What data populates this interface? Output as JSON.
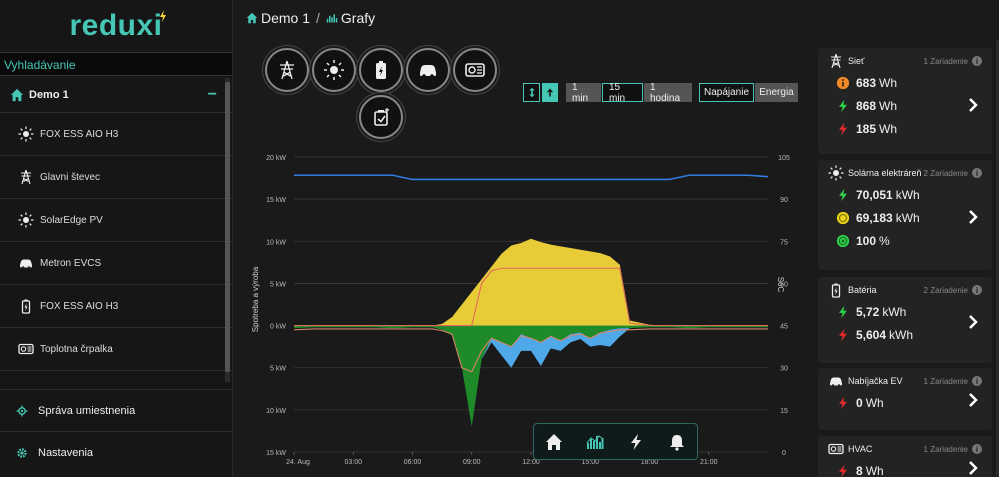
{
  "app": {
    "logo": "reduxi"
  },
  "sidebar": {
    "search_label": "Vyhladávanie",
    "location": "Demo 1",
    "devices": [
      {
        "label": "FOX ESS AIO H3",
        "icon": "sun-icon"
      },
      {
        "label": "Glavni števec",
        "icon": "power-tower-icon"
      },
      {
        "label": "SolarEdge PV",
        "icon": "sun-icon"
      },
      {
        "label": "Metron EVCS",
        "icon": "car-icon"
      },
      {
        "label": "FOX ESS AIO H3",
        "icon": "battery-icon"
      },
      {
        "label": "Toplotna črpalka",
        "icon": "hvac-icon"
      }
    ],
    "nav": [
      {
        "label": "Správa umiestnenia",
        "icon": "location-icon"
      },
      {
        "label": "Nastavenia",
        "icon": "gear-icon"
      }
    ]
  },
  "breadcrumb": {
    "home": "Demo 1",
    "separator": "/",
    "page": "Grafy"
  },
  "controls": {
    "interval_1": "1 min",
    "interval_2": "15 min",
    "interval_3": "1 hodina",
    "mode_1": "Napájanie",
    "mode_2": "Energia"
  },
  "chart_data": {
    "type": "area",
    "ylabel": "Spotreba a výroba",
    "y2label": "SoC",
    "y_ticks": [
      "20 kW",
      "15 kW",
      "10 kW",
      "5 kW",
      "0 kW",
      "5 kW",
      "10 kW",
      "15 kW"
    ],
    "y2_ticks": [
      "105",
      "90",
      "75",
      "60",
      "45",
      "30",
      "15",
      "0"
    ],
    "x_ticks": [
      "24. Aug",
      "03:00",
      "06:00",
      "09:00",
      "12:00",
      "15:00",
      "18:00",
      "21:00"
    ],
    "x_hours": [
      0,
      1,
      2,
      3,
      4,
      5,
      6,
      7,
      7.5,
      8,
      8.5,
      9,
      9.5,
      10,
      10.5,
      11,
      11.5,
      12,
      12.5,
      13,
      13.5,
      14,
      14.5,
      15,
      15.5,
      16,
      16.5,
      17,
      18,
      19,
      20,
      21,
      22,
      23,
      24
    ],
    "solar_kw": [
      0,
      0,
      0,
      0,
      0,
      0,
      0,
      0,
      0.2,
      1,
      2.5,
      4,
      5.5,
      7,
      8.5,
      9.5,
      9.8,
      10.3,
      9.9,
      9.6,
      9.4,
      9.2,
      9,
      8.8,
      8.6,
      8.2,
      7.2,
      0.6,
      0.1,
      0,
      0,
      0,
      0,
      0,
      0
    ],
    "soc_line": [
      98.5,
      98.5,
      98.5,
      98.5,
      98.5,
      98.5,
      97,
      97,
      97,
      97,
      97,
      97,
      97,
      97,
      97,
      97,
      97,
      97,
      97,
      97,
      97,
      97,
      97,
      97,
      97,
      97,
      97,
      97,
      97,
      97,
      98.5,
      98.5,
      98.5,
      98.5,
      98
    ],
    "grid_import_kw": [
      -0.3,
      -0.2,
      -0.2,
      -0.2,
      -0.2,
      -0.3,
      -0.2,
      -0.2,
      -0.5,
      -1.2,
      -5,
      -12,
      -4,
      -1.5,
      -2,
      -2.5,
      -1,
      -1.5,
      -2,
      -1.2,
      -1.8,
      -1,
      -0.8,
      -1.5,
      -0.8,
      -0.5,
      -0.3,
      -0.3,
      -0.2,
      -0.2,
      -0.3,
      -0.2,
      -0.2,
      -0.2,
      -0.2
    ],
    "battery_kw": [
      0,
      0,
      0,
      0,
      0,
      0,
      0,
      0,
      0,
      0,
      0,
      0,
      0,
      -0.5,
      -1.5,
      -2.5,
      -2,
      -1.5,
      -2.8,
      -1.5,
      -1.2,
      -1,
      -0.8,
      -1,
      -1.5,
      -2,
      -1,
      0,
      0,
      0,
      0,
      0,
      0,
      0,
      0
    ],
    "load_line_kw": [
      -0.5,
      -0.4,
      -0.4,
      -0.4,
      -0.4,
      -0.4,
      -0.4,
      -0.4,
      -0.6,
      -1,
      -5,
      -5.5,
      -3,
      -1.5,
      -2,
      -2.5,
      -1.2,
      -1.5,
      -2,
      -1.3,
      -1.8,
      -1.2,
      -1,
      -1.5,
      -0.9,
      -0.7,
      -0.5,
      -0.5,
      -0.4,
      -0.4,
      -0.4,
      -0.4,
      -0.4,
      -0.4,
      -0.4
    ],
    "charge_line_kw": [
      0,
      0,
      0,
      0,
      0,
      0,
      0,
      0,
      0,
      0,
      0,
      0,
      5,
      6.5,
      6.8,
      6.8,
      6.8,
      6.8,
      6.8,
      6.8,
      6.8,
      6.8,
      6.8,
      6.8,
      6.8,
      6.8,
      6.8,
      0.3,
      0,
      0,
      0,
      0,
      0,
      0,
      0
    ],
    "ylim": [
      -15,
      20
    ],
    "xlim": [
      0,
      24
    ],
    "colors": {
      "solar": "#f2d63a",
      "grid": "#1f8a2a",
      "battery": "#4fa8e8",
      "soc": "#2f7de0",
      "load": "#d4876a",
      "charge": "#e06a5a"
    }
  },
  "cards": [
    {
      "title": "Sieť",
      "devices": "1 Zariadenie",
      "icon": "power-tower-icon",
      "rows": [
        {
          "icon": "info-orange-icon",
          "value": "683",
          "unit": "Wh"
        },
        {
          "icon": "bolt-green-icon",
          "value": "868",
          "unit": "Wh"
        },
        {
          "icon": "bolt-red-icon",
          "value": "185",
          "unit": "Wh"
        }
      ]
    },
    {
      "title": "Solárna elektráreň",
      "devices": "2 Zariadenie",
      "icon": "sun-icon",
      "rows": [
        {
          "icon": "bolt-green-icon",
          "value": "70,051",
          "unit": "kWh"
        },
        {
          "icon": "sun-yellow-icon",
          "value": "69,183",
          "unit": "kWh"
        },
        {
          "icon": "self-use-green-icon",
          "value": "100",
          "unit": "%"
        }
      ]
    },
    {
      "title": "Batéria",
      "devices": "2 Zariadenie",
      "icon": "battery-icon",
      "rows": [
        {
          "icon": "bolt-green-icon",
          "value": "5,72",
          "unit": "kWh"
        },
        {
          "icon": "bolt-red-icon",
          "value": "5,604",
          "unit": "kWh"
        }
      ]
    },
    {
      "title": "Nabíjačka EV",
      "devices": "1 Zariadenie",
      "icon": "car-icon",
      "rows": [
        {
          "icon": "bolt-red-icon",
          "value": "0",
          "unit": "Wh"
        }
      ]
    },
    {
      "title": "HVAC",
      "devices": "1 Zariadenie",
      "icon": "hvac-icon",
      "rows": [
        {
          "icon": "bolt-red-icon",
          "value": "8",
          "unit": "Wh"
        }
      ]
    }
  ]
}
